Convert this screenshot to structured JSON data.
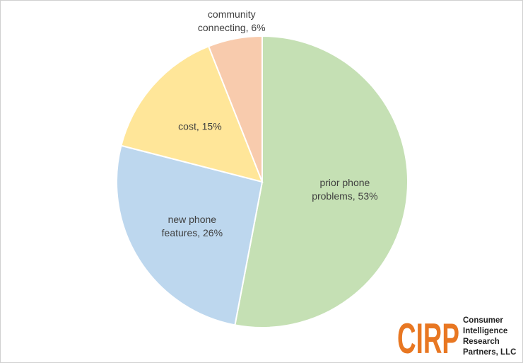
{
  "chart_data": {
    "type": "pie",
    "values": [
      53,
      26,
      15,
      6
    ],
    "value_labels": [
      "prior phone problems, 53%",
      "new phone features, 26%",
      "cost, 15%",
      "community connecting, 6%"
    ],
    "colors": [
      "#c5e0b4",
      "#bdd7ee",
      "#ffe699",
      "#f8cbad"
    ]
  },
  "logo": {
    "mark": "CIRP",
    "lines": [
      "Consumer",
      "Intelligence",
      "Research",
      "Partners, LLC"
    ]
  }
}
